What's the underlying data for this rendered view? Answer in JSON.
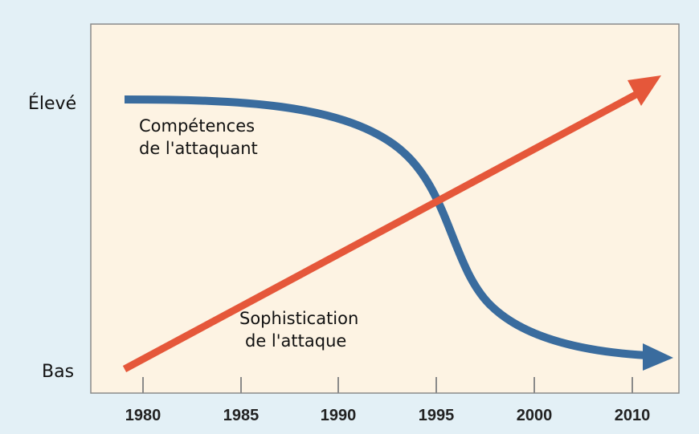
{
  "y_axis": {
    "labels": [
      "Élevé",
      "Bas"
    ]
  },
  "x_axis": {
    "labels": [
      "1980",
      "1985",
      "1990",
      "1995",
      "2000",
      "2010"
    ]
  },
  "curves": [
    {
      "label_lines": [
        "Compétences",
        "de l'attaquant"
      ]
    },
    {
      "label_lines": [
        "Sophistication",
        "de l'attaque"
      ]
    }
  ]
}
